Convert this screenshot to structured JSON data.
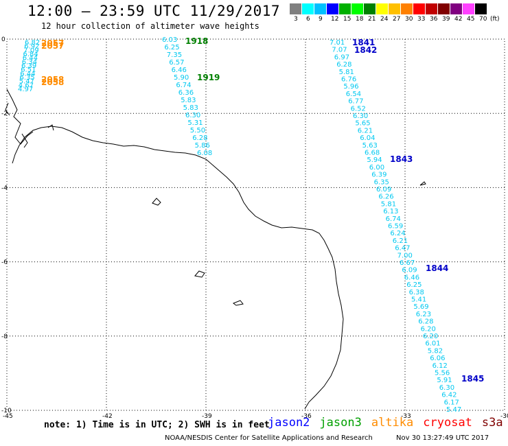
{
  "header": {
    "title": "12:00 — 23:59 UTC 11/29/2017",
    "subtitle": "12 hour collection of altimeter wave heights"
  },
  "legend": {
    "unit": "(ft)",
    "labels": [
      "3",
      "6",
      "9",
      "12",
      "15",
      "18",
      "21",
      "24",
      "27",
      "30",
      "33",
      "36",
      "39",
      "42",
      "45",
      "70"
    ],
    "colors": [
      "#808080",
      "#00ffff",
      "#00c0ff",
      "#0000ff",
      "#00b000",
      "#00ff00",
      "#008000",
      "#ffff00",
      "#ffc000",
      "#ff8000",
      "#ff0000",
      "#c00000",
      "#800000",
      "#800080",
      "#ff40ff",
      "#000000"
    ]
  },
  "axes": {
    "lon_ticks": [
      "-45",
      "-42",
      "-39",
      "-36",
      "-33",
      "-30"
    ],
    "lat_ticks": [
      "0",
      "-2",
      "-4",
      "-6",
      "-8",
      "-10"
    ]
  },
  "tracks": [
    {
      "satellite": "altika",
      "color": "#ff8c00",
      "pass_labels": [
        "2057",
        "2057",
        "2058",
        "2058"
      ],
      "values": [
        "6.82",
        "6.92",
        "7.09",
        "6.84",
        "6.44",
        "6.34",
        "6.39",
        "6.51",
        "6.44",
        "6.35",
        "5.47",
        "4.67",
        "4.97"
      ]
    },
    {
      "satellite": "jason3",
      "color": "#008000",
      "pass_labels": [
        "1918",
        "1919"
      ],
      "values": [
        "6.03",
        "6.25",
        "7.35",
        "6.57",
        "6.46",
        "5.90",
        "6.74",
        "6.36",
        "5.83",
        "5.83",
        "6.30",
        "5.31",
        "5.50",
        "6.28",
        "5.86",
        "6.08"
      ]
    },
    {
      "satellite": "jason2",
      "color": "#0000c8",
      "pass_labels": [
        "1841",
        "1842",
        "1843",
        "1844",
        "1845"
      ],
      "values": [
        "7.01",
        "7.07",
        "6.97",
        "6.28",
        "5.81",
        "6.76",
        "5.96",
        "6.54",
        "6.77",
        "6.52",
        "6.30",
        "5.65",
        "6.21",
        "6.04",
        "5.63",
        "6.68",
        "5.94",
        "6.00",
        "6.39",
        "6.35",
        "6.09",
        "6.26",
        "5.81",
        "6.13",
        "6.74",
        "6.59",
        "6.24",
        "6.21",
        "6.47",
        "7.00",
        "6.67",
        "6.09",
        "6.46",
        "6.25",
        "6.38",
        "5.41",
        "5.69",
        "6.23",
        "6.28",
        "6.20",
        "6.20",
        "6.01",
        "5.82",
        "6.06",
        "6.12",
        "5.56",
        "5.91",
        "6.30",
        "6.42",
        "6.17",
        "5.47"
      ]
    }
  ],
  "footer": {
    "note": "note: 1) Time is in UTC; 2) SWH is in feet",
    "satellites": [
      {
        "name": "jason2",
        "color": "#0000ff"
      },
      {
        "name": "jason3",
        "color": "#00a000"
      },
      {
        "name": "altika",
        "color": "#ff8c00"
      },
      {
        "name": "cryosat",
        "color": "#ff0000"
      },
      {
        "name": "s3a",
        "color": "#800000"
      }
    ],
    "credit": "NOAA/NESDIS Center for Satellite Applications and Research",
    "timestamp": "Nov 30 13:27:49 UTC 2017"
  }
}
